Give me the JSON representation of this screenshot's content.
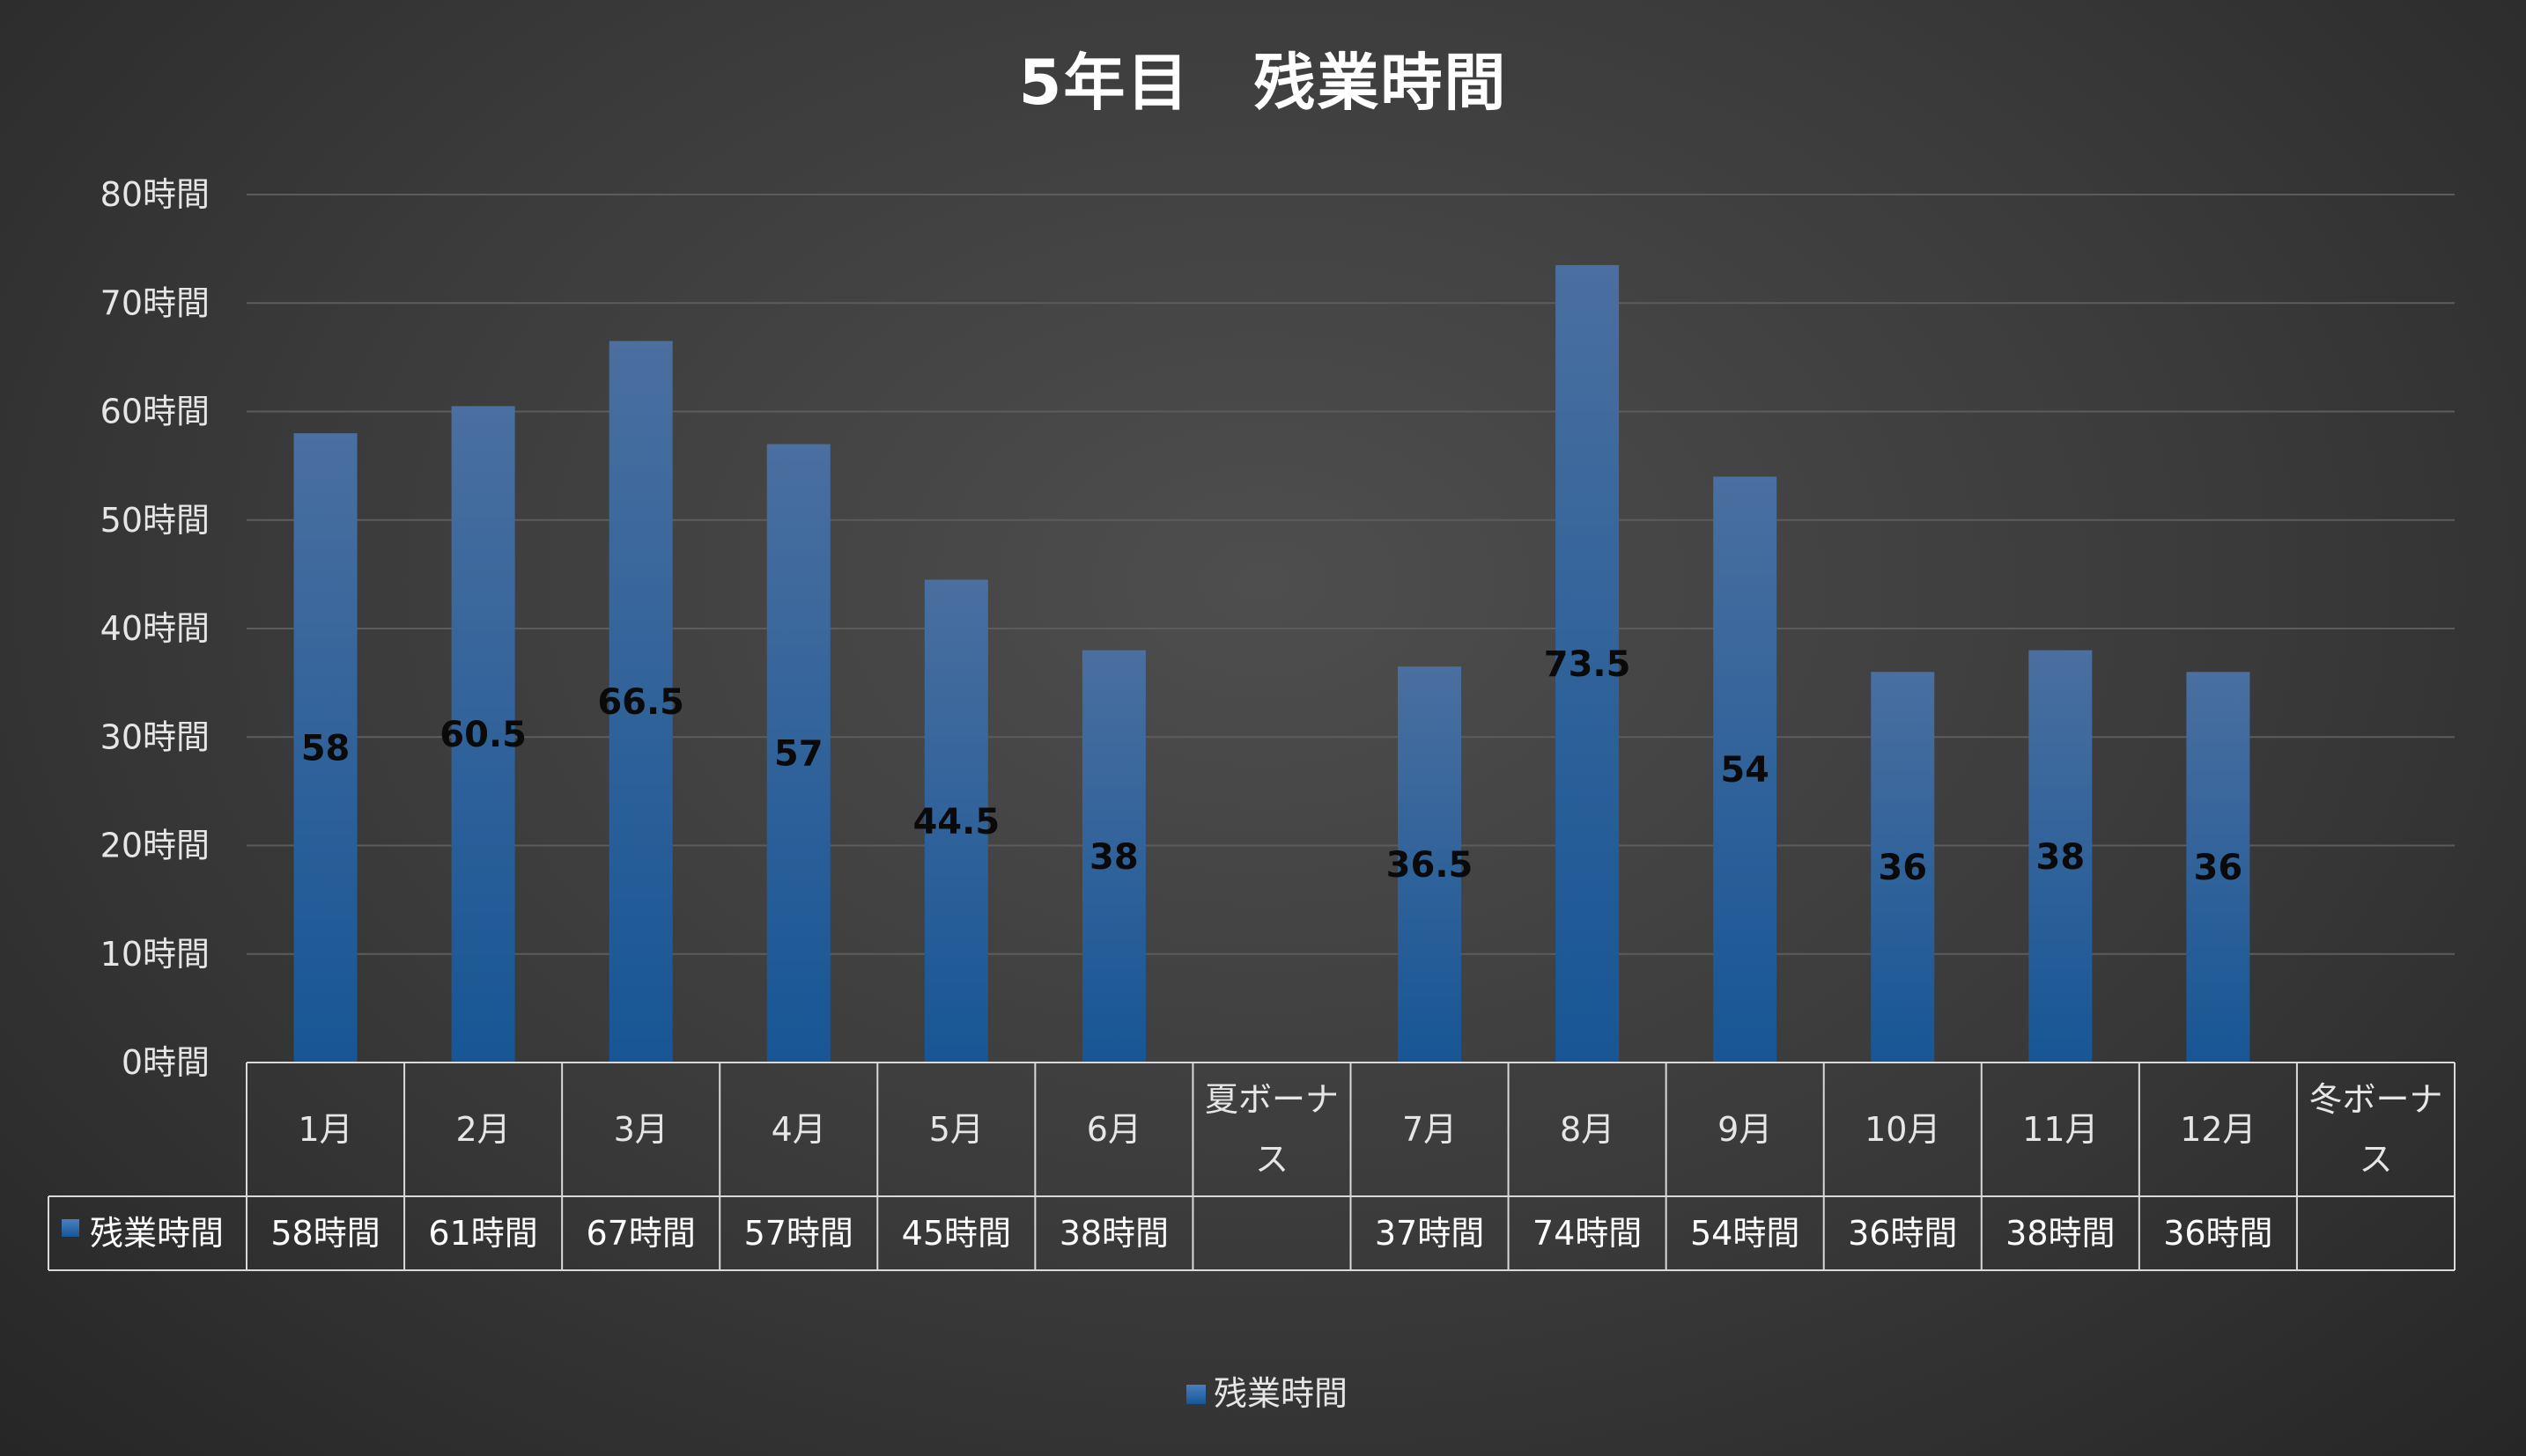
{
  "chart_data": {
    "type": "bar",
    "title": "5年目　残業時間",
    "categories": [
      "1月",
      "2月",
      "3月",
      "4月",
      "5月",
      "6月",
      "夏ボーナス",
      "7月",
      "8月",
      "9月",
      "10月",
      "11月",
      "12月",
      "冬ボーナス"
    ],
    "category_lines": [
      [
        "1月"
      ],
      [
        "2月"
      ],
      [
        "3月"
      ],
      [
        "4月"
      ],
      [
        "5月"
      ],
      [
        "6月"
      ],
      [
        "夏ボーナ",
        "ス"
      ],
      [
        "7月"
      ],
      [
        "8月"
      ],
      [
        "9月"
      ],
      [
        "10月"
      ],
      [
        "11月"
      ],
      [
        "12月"
      ],
      [
        "冬ボーナ",
        "ス"
      ]
    ],
    "series": [
      {
        "name": "残業時間",
        "values": [
          58,
          60.5,
          66.5,
          57,
          44.5,
          38,
          null,
          36.5,
          73.5,
          54,
          36,
          38,
          36,
          null
        ],
        "data_labels": [
          "58",
          "60.5",
          "66.5",
          "57",
          "44.5",
          "38",
          "",
          "36.5",
          "73.5",
          "54",
          "36",
          "38",
          "36",
          ""
        ],
        "table_values": [
          "58時間",
          "61時間",
          "67時間",
          "57時間",
          "45時間",
          "38時間",
          "",
          "37時間",
          "74時間",
          "54時間",
          "36時間",
          "38時間",
          "36時間",
          ""
        ]
      }
    ],
    "ylim": [
      0,
      80
    ],
    "yticks": [
      0,
      10,
      20,
      30,
      40,
      50,
      60,
      70,
      80
    ],
    "ytick_labels": [
      "0時間",
      "10時間",
      "20時間",
      "30時間",
      "40時間",
      "50時間",
      "60時間",
      "70時間",
      "80時間"
    ],
    "xlabel": "",
    "ylabel": "",
    "grid": true,
    "legend": "bottom",
    "data_table": true,
    "colors": {
      "bar_top": "#4a6fa0",
      "bar_bottom": "#175695",
      "grid": "#5c5c5c",
      "table_border": "#d9d9d9",
      "legend_marker": "#2a6cb5"
    }
  }
}
